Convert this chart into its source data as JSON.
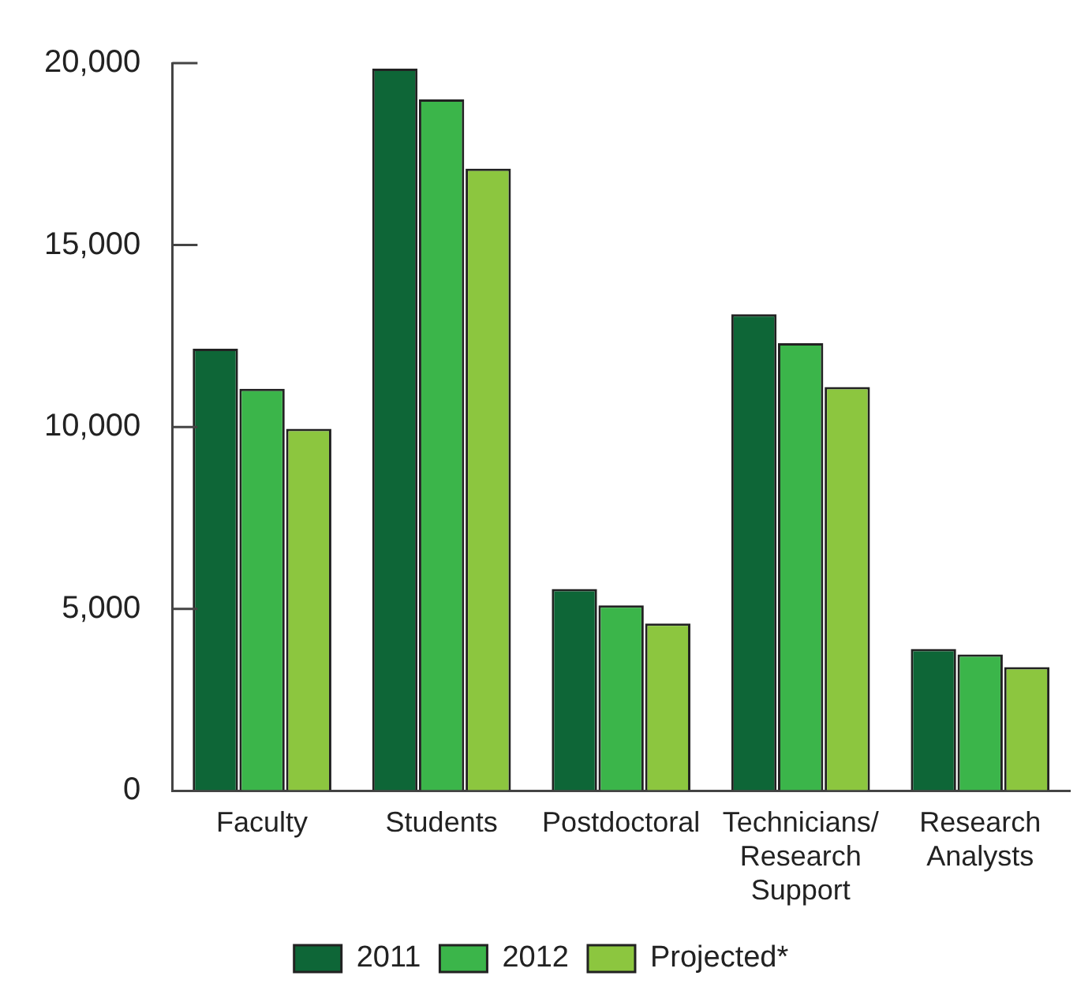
{
  "chart_data": {
    "type": "bar",
    "categories": [
      "Faculty",
      "Students",
      "Postdoctoral",
      "Technicians/ Research Support",
      "Research Analysts"
    ],
    "series": [
      {
        "name": "2011",
        "color": "#0e6637",
        "values": [
          12150,
          19850,
          5550,
          13100,
          3900
        ]
      },
      {
        "name": "2012",
        "color": "#3bb54a",
        "values": [
          11050,
          19000,
          5100,
          12300,
          3750
        ]
      },
      {
        "name": "Projected*",
        "color": "#8cc63f",
        "values": [
          9950,
          17100,
          4600,
          11100,
          3400
        ]
      }
    ],
    "ylim": [
      0,
      20000
    ],
    "yticks": [
      0,
      {
        "value": 5000,
        "label": "5,000"
      },
      {
        "value": 10000,
        "label": "10,000"
      },
      {
        "value": 15000,
        "label": "15,000"
      },
      {
        "value": 20000,
        "label": "20,000"
      }
    ],
    "grid": false,
    "legend": "bottom"
  }
}
